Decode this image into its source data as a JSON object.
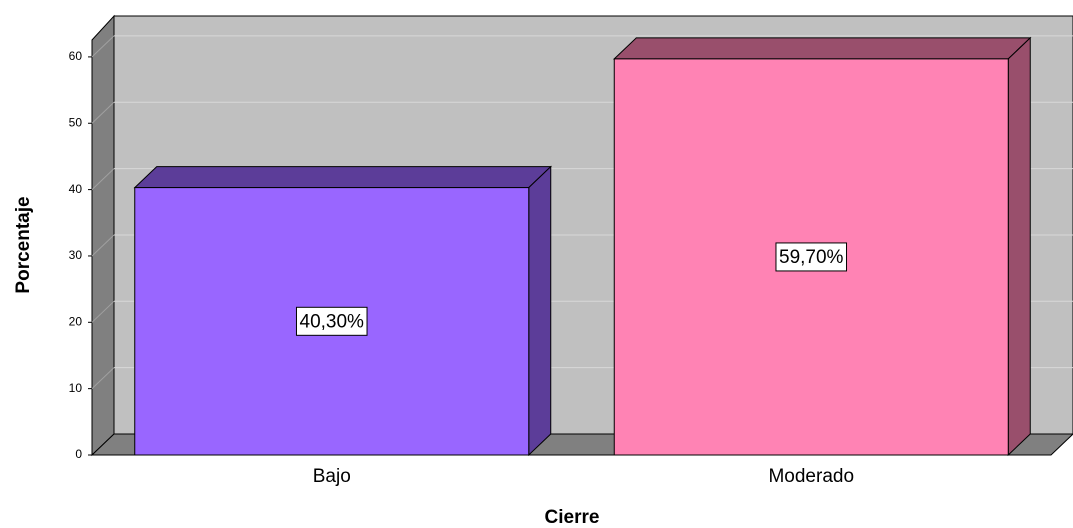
{
  "chart_data": {
    "type": "bar3d",
    "x_label": "Cierre",
    "y_label": "Porcentaje",
    "categories": [
      "Bajo",
      "Moderado"
    ],
    "values": [
      40.3,
      59.7
    ],
    "value_labels": [
      "40,30%",
      "59,70%"
    ],
    "colors": [
      "#9966ff",
      "#ff83b4"
    ],
    "ylim": [
      0,
      63
    ],
    "yticks": [
      0,
      10,
      20,
      30,
      40,
      50,
      60
    ],
    "grid": true
  }
}
